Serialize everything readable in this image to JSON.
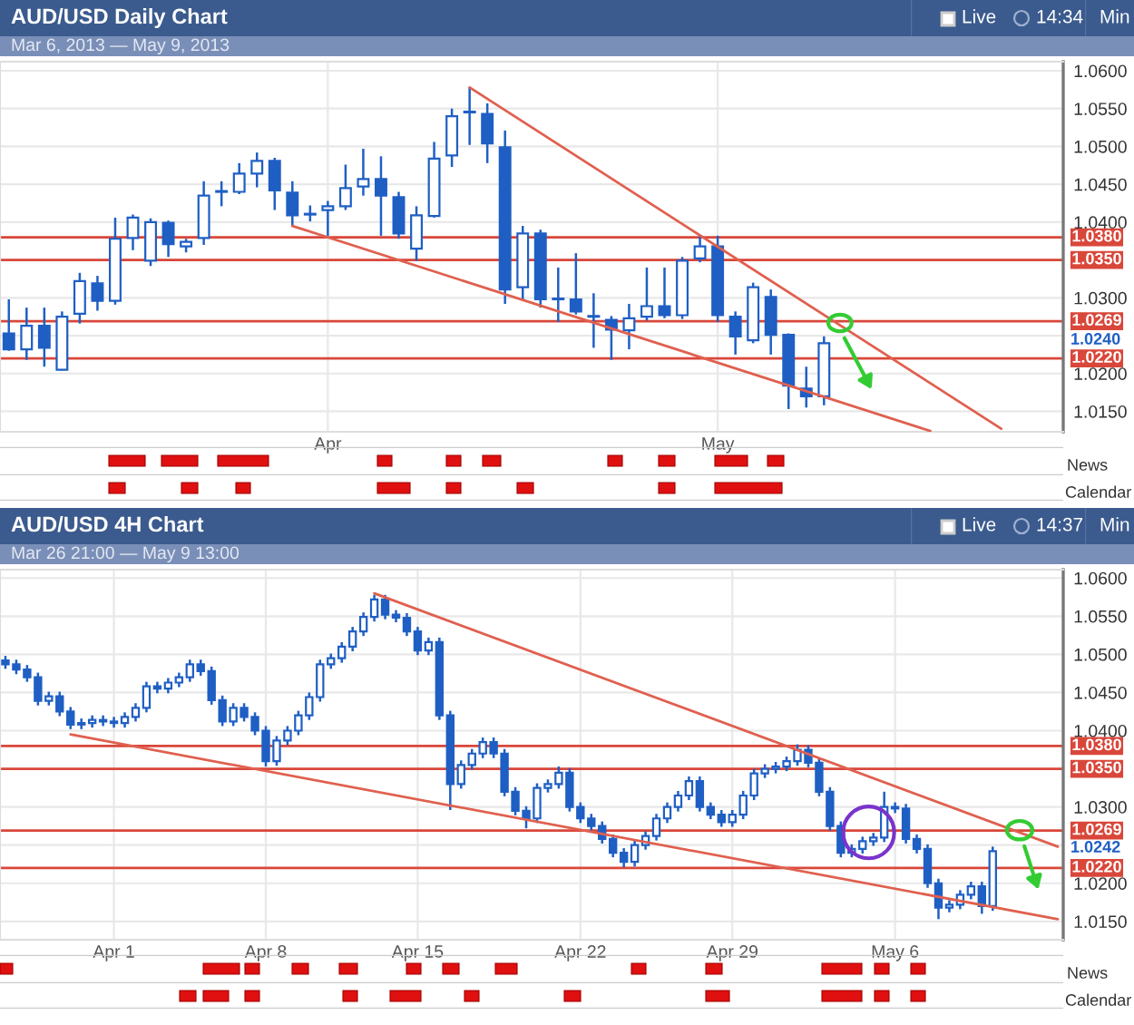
{
  "chart_data": [
    {
      "type": "candlestick",
      "title": "AUD/USD Daily Chart",
      "subtitle": "Mar 6, 2013 — May 9, 2013",
      "color": "#1f5fc4",
      "categories": [
        null,
        null,
        null,
        null,
        null,
        null,
        null,
        null,
        null,
        null,
        null,
        null,
        null,
        null,
        null,
        null,
        null,
        null,
        "Apr",
        null,
        null,
        null,
        null,
        null,
        null,
        null,
        null,
        null,
        null,
        null,
        null,
        null,
        null,
        null,
        null,
        null,
        null,
        null,
        null,
        null,
        "May",
        null,
        null,
        null,
        null,
        null,
        null,
        null,
        null,
        null,
        null,
        null,
        null,
        null,
        null,
        null,
        null,
        null,
        null,
        null
      ],
      "ohlc": [
        [
          1.0253,
          1.0298,
          1.023,
          1.0232
        ],
        [
          1.0232,
          1.0287,
          1.0218,
          1.0263
        ],
        [
          1.0263,
          1.0287,
          1.0209,
          1.0234
        ],
        [
          1.0205,
          1.0282,
          1.0204,
          1.0275
        ],
        [
          1.0279,
          1.0333,
          1.0266,
          1.0322
        ],
        [
          1.0319,
          1.0329,
          1.0283,
          1.0296
        ],
        [
          1.0296,
          1.0406,
          1.0291,
          1.0378
        ],
        [
          1.0379,
          1.041,
          1.0363,
          1.0406
        ],
        [
          1.0349,
          1.0405,
          1.0342,
          1.04
        ],
        [
          1.0399,
          1.0402,
          1.0354,
          1.0371
        ],
        [
          1.0368,
          1.0378,
          1.036,
          1.0374
        ],
        [
          1.0379,
          1.0454,
          1.037,
          1.0435
        ],
        [
          1.044,
          1.0454,
          1.0421,
          1.0441
        ],
        [
          1.044,
          1.0478,
          1.0437,
          1.0464
        ],
        [
          1.0464,
          1.0492,
          1.0446,
          1.0481
        ],
        [
          1.0481,
          1.0485,
          1.0416,
          1.0442
        ],
        [
          1.0439,
          1.0454,
          1.0395,
          1.0409
        ],
        [
          1.041,
          1.0422,
          1.0401,
          1.0411
        ],
        [
          1.0416,
          1.0428,
          1.0382,
          1.0421
        ],
        [
          1.0421,
          1.0476,
          1.0416,
          1.0445
        ],
        [
          1.0447,
          1.0497,
          1.0435,
          1.0457
        ],
        [
          1.0457,
          1.0487,
          1.0382,
          1.0435
        ],
        [
          1.0433,
          1.044,
          1.0378,
          1.0385
        ],
        [
          1.0365,
          1.0421,
          1.0349,
          1.0409
        ],
        [
          1.0408,
          1.0506,
          1.0406,
          1.0484
        ],
        [
          1.0488,
          1.055,
          1.0473,
          1.054
        ],
        [
          1.0545,
          1.0578,
          1.0502,
          1.0546
        ],
        [
          1.0543,
          1.0557,
          1.0478,
          1.0504
        ],
        [
          1.0499,
          1.0521,
          1.0292,
          1.0311
        ],
        [
          1.0314,
          1.0395,
          1.0297,
          1.0385
        ],
        [
          1.0385,
          1.039,
          1.0287,
          1.0298
        ],
        [
          1.0298,
          1.034,
          1.0268,
          1.0299
        ],
        [
          1.0298,
          1.0359,
          1.0278,
          1.0282
        ],
        [
          1.0275,
          1.0306,
          1.0234,
          1.0276
        ],
        [
          1.0271,
          1.0276,
          1.0218,
          1.0258
        ],
        [
          1.0257,
          1.0292,
          1.0232,
          1.0273
        ],
        [
          1.0275,
          1.034,
          1.027,
          1.0289
        ],
        [
          1.0289,
          1.034,
          1.0273,
          1.0277
        ],
        [
          1.0277,
          1.0354,
          1.0272,
          1.0349
        ],
        [
          1.0352,
          1.0382,
          1.0347,
          1.0368
        ],
        [
          1.0368,
          1.0382,
          1.0268,
          1.0277
        ],
        [
          1.0275,
          1.0282,
          1.0225,
          1.0249
        ],
        [
          1.0244,
          1.032,
          1.024,
          1.0314
        ],
        [
          1.0301,
          1.0311,
          1.0225,
          1.0251
        ],
        [
          1.0251,
          1.0253,
          1.0153,
          1.0184
        ],
        [
          1.018,
          1.0209,
          1.0155,
          1.017
        ],
        [
          1.017,
          1.0249,
          1.0158,
          1.024
        ],
        null,
        null,
        null,
        null,
        null,
        null,
        null,
        null,
        null,
        null,
        null,
        null,
        null
      ],
      "series": [
        {
          "type": "line",
          "color": "#e0604f",
          "values": [
            null,
            null,
            null,
            null,
            null,
            null,
            null,
            null,
            null,
            null,
            null,
            null,
            null,
            null,
            null,
            null,
            1.0395,
            null,
            null,
            null,
            null,
            null,
            null,
            null,
            null,
            null,
            null,
            null,
            null,
            null,
            null,
            null,
            null,
            null,
            null,
            null,
            null,
            null,
            null,
            null,
            null,
            null,
            null,
            null,
            null,
            null,
            null,
            null,
            null,
            null,
            null,
            null,
            1.0124,
            null,
            null,
            null,
            null,
            null,
            null,
            null
          ]
        },
        {
          "type": "line",
          "color": "#e0604f",
          "values": [
            null,
            null,
            null,
            null,
            null,
            null,
            null,
            null,
            null,
            null,
            null,
            null,
            null,
            null,
            null,
            null,
            null,
            null,
            null,
            null,
            null,
            null,
            null,
            null,
            null,
            null,
            1.0578,
            null,
            null,
            null,
            null,
            null,
            null,
            null,
            null,
            null,
            null,
            null,
            null,
            null,
            null,
            null,
            null,
            null,
            null,
            null,
            null,
            null,
            null,
            null,
            null,
            null,
            null,
            null,
            null,
            null,
            1.0127,
            null,
            null,
            null
          ]
        }
      ],
      "ref_lines": [
        {
          "axis": "y",
          "value": 1.038,
          "label": "1.0380",
          "color": "#d9473a"
        },
        {
          "axis": "y",
          "value": 1.035,
          "label": "1.0350",
          "color": "#d9473a"
        },
        {
          "axis": "y",
          "value": 1.0269,
          "label": "1.0269",
          "color": "#d9473a"
        },
        {
          "axis": "y",
          "value": 1.022,
          "label": "1.0220",
          "color": "#d9473a"
        }
      ],
      "ylim": [
        1.0123,
        1.0612
      ],
      "yticks": [
        {
          "value": 1.015,
          "label": "1.0150"
        },
        {
          "value": 1.02,
          "label": "1.0200"
        },
        {
          "value": 1.025,
          "label": null
        },
        {
          "value": 1.03,
          "label": "1.0300"
        },
        {
          "value": 1.035,
          "label": null
        },
        {
          "value": 1.04,
          "label": "1.0400"
        },
        {
          "value": 1.045,
          "label": "1.0450"
        },
        {
          "value": 1.05,
          "label": "1.0500"
        },
        {
          "value": 1.055,
          "label": "1.0550"
        },
        {
          "value": 1.06,
          "label": "1.0600"
        }
      ],
      "grid": true,
      "annotations": [
        "1.0240",
        "Live",
        "14:34",
        "Min",
        "News",
        "Calendar"
      ]
    },
    {
      "type": "candlestick",
      "title": "AUD/USD 4H Chart",
      "subtitle": "Mar 26 21:00 — May 9 13:00",
      "color": "#1f5fc4",
      "categories": [
        null,
        null,
        null,
        null,
        null,
        null,
        null,
        null,
        null,
        null,
        "Apr 1",
        null,
        null,
        null,
        null,
        null,
        null,
        null,
        null,
        null,
        null,
        null,
        null,
        null,
        "Apr 8",
        null,
        null,
        null,
        null,
        null,
        null,
        null,
        null,
        null,
        null,
        null,
        null,
        null,
        "Apr 15",
        null,
        null,
        null,
        null,
        null,
        null,
        null,
        null,
        null,
        null,
        null,
        null,
        null,
        null,
        "Apr 22",
        null,
        null,
        null,
        null,
        null,
        null,
        null,
        null,
        null,
        null,
        null,
        null,
        null,
        "Apr 29",
        null,
        null,
        null,
        null,
        null,
        null,
        null,
        null,
        null,
        null,
        null,
        null,
        null,
        null,
        "May 6",
        null,
        null,
        null,
        null,
        null,
        null,
        null,
        null,
        null,
        null,
        null,
        null,
        null,
        null,
        null
      ],
      "ohlc": [
        [
          1.0492,
          1.0498,
          1.0481,
          1.0487
        ],
        [
          1.0487,
          1.0493,
          1.0474,
          1.048
        ],
        [
          1.048,
          1.0486,
          1.0464,
          1.047
        ],
        [
          1.047,
          1.0476,
          1.0433,
          1.0439
        ],
        [
          1.0439,
          1.0451,
          1.0433,
          1.0445
        ],
        [
          1.0445,
          1.0451,
          1.0419,
          1.0425
        ],
        [
          1.0425,
          1.0431,
          1.0402,
          1.0408
        ],
        [
          1.0408,
          1.0416,
          1.0402,
          1.041
        ],
        [
          1.041,
          1.042,
          1.0404,
          1.0414
        ],
        [
          1.0414,
          1.042,
          1.0406,
          1.0412
        ],
        [
          1.0412,
          1.0418,
          1.0404,
          1.041
        ],
        [
          1.041,
          1.0424,
          1.0404,
          1.0418
        ],
        [
          1.0418,
          1.0436,
          1.0412,
          1.043
        ],
        [
          1.043,
          1.0464,
          1.0424,
          1.0458
        ],
        [
          1.0458,
          1.0464,
          1.0449,
          1.0455
        ],
        [
          1.0455,
          1.0469,
          1.0449,
          1.0463
        ],
        [
          1.0463,
          1.0476,
          1.0457,
          1.047
        ],
        [
          1.047,
          1.0493,
          1.0464,
          1.0487
        ],
        [
          1.0487,
          1.0493,
          1.0472,
          1.0478
        ],
        [
          1.0478,
          1.0484,
          1.0434,
          1.044
        ],
        [
          1.044,
          1.0446,
          1.0406,
          1.0412
        ],
        [
          1.0412,
          1.0436,
          1.0406,
          1.043
        ],
        [
          1.043,
          1.0436,
          1.0412,
          1.0418
        ],
        [
          1.0418,
          1.0424,
          1.0394,
          1.04
        ],
        [
          1.04,
          1.0406,
          1.0353,
          1.036
        ],
        [
          1.036,
          1.0393,
          1.0354,
          1.0387
        ],
        [
          1.0387,
          1.0406,
          1.0381,
          1.04
        ],
        [
          1.04,
          1.0426,
          1.0394,
          1.042
        ],
        [
          1.042,
          1.045,
          1.0414,
          1.0444
        ],
        [
          1.0444,
          1.0493,
          1.0438,
          1.0487
        ],
        [
          1.0487,
          1.0501,
          1.0481,
          1.0495
        ],
        [
          1.0495,
          1.0516,
          1.0489,
          1.051
        ],
        [
          1.051,
          1.0536,
          1.0504,
          1.053
        ],
        [
          1.053,
          1.0555,
          1.0524,
          1.0549
        ],
        [
          1.0549,
          1.0578,
          1.0543,
          1.0572
        ],
        [
          1.0572,
          1.0578,
          1.0546,
          1.0552
        ],
        [
          1.0552,
          1.0558,
          1.0542,
          1.0548
        ],
        [
          1.0548,
          1.0554,
          1.0524,
          1.053
        ],
        [
          1.053,
          1.0536,
          1.0499,
          1.0505
        ],
        [
          1.0505,
          1.0522,
          1.0499,
          1.0516
        ],
        [
          1.0516,
          1.0522,
          1.0414,
          1.042
        ],
        [
          1.042,
          1.0426,
          1.0296,
          1.033
        ],
        [
          1.033,
          1.0361,
          1.0324,
          1.0355
        ],
        [
          1.0355,
          1.0376,
          1.0349,
          1.037
        ],
        [
          1.037,
          1.0391,
          1.0364,
          1.0385
        ],
        [
          1.0385,
          1.0391,
          1.0364,
          1.037
        ],
        [
          1.037,
          1.0376,
          1.0314,
          1.032
        ],
        [
          1.032,
          1.0326,
          1.0289,
          1.0295
        ],
        [
          1.0295,
          1.0301,
          1.0272,
          1.0285
        ],
        [
          1.0285,
          1.0331,
          1.0279,
          1.0325
        ],
        [
          1.0325,
          1.0336,
          1.0319,
          1.033
        ],
        [
          1.033,
          1.0353,
          1.0324,
          1.0345
        ],
        [
          1.0345,
          1.0351,
          1.0294,
          1.03
        ],
        [
          1.03,
          1.0306,
          1.0279,
          1.0285
        ],
        [
          1.0285,
          1.0291,
          1.0269,
          1.0275
        ],
        [
          1.0275,
          1.0281,
          1.0252,
          1.0258
        ],
        [
          1.0258,
          1.0264,
          1.0234,
          1.024
        ],
        [
          1.024,
          1.0246,
          1.0221,
          1.0228
        ],
        [
          1.0228,
          1.0256,
          1.0222,
          1.025
        ],
        [
          1.025,
          1.0268,
          1.0244,
          1.0262
        ],
        [
          1.0262,
          1.0291,
          1.0256,
          1.0285
        ],
        [
          1.0285,
          1.0306,
          1.0279,
          1.03
        ],
        [
          1.03,
          1.0321,
          1.0294,
          1.0315
        ],
        [
          1.0315,
          1.034,
          1.0309,
          1.0334
        ],
        [
          1.0334,
          1.034,
          1.0294,
          1.03
        ],
        [
          1.03,
          1.0306,
          1.0284,
          1.029
        ],
        [
          1.029,
          1.0296,
          1.0274,
          1.028
        ],
        [
          1.028,
          1.0296,
          1.0274,
          1.029
        ],
        [
          1.029,
          1.0321,
          1.0284,
          1.0315
        ],
        [
          1.0315,
          1.035,
          1.0309,
          1.0344
        ],
        [
          1.0344,
          1.0356,
          1.0338,
          1.035
        ],
        [
          1.035,
          1.0359,
          1.0344,
          1.0353
        ],
        [
          1.0353,
          1.0366,
          1.0347,
          1.036
        ],
        [
          1.036,
          1.0382,
          1.0354,
          1.0375
        ],
        [
          1.0375,
          1.0381,
          1.0352,
          1.0358
        ],
        [
          1.0358,
          1.0364,
          1.0314,
          1.032
        ],
        [
          1.032,
          1.0326,
          1.0269,
          1.0275
        ],
        [
          1.0275,
          1.0281,
          1.0234,
          1.024
        ],
        [
          1.024,
          1.0251,
          1.0234,
          1.0245
        ],
        [
          1.0245,
          1.0261,
          1.0239,
          1.0255
        ],
        [
          1.0255,
          1.0266,
          1.0249,
          1.026
        ],
        [
          1.026,
          1.032,
          1.0254,
          1.03
        ],
        [
          1.03,
          1.0306,
          1.0292,
          1.0298
        ],
        [
          1.0298,
          1.0304,
          1.0252,
          1.0258
        ],
        [
          1.0258,
          1.0264,
          1.0239,
          1.0245
        ],
        [
          1.0245,
          1.0251,
          1.0194,
          1.02
        ],
        [
          1.02,
          1.0206,
          1.0153,
          1.0168
        ],
        [
          1.0168,
          1.0178,
          1.0162,
          1.0172
        ],
        [
          1.0172,
          1.0191,
          1.0166,
          1.0185
        ],
        [
          1.0185,
          1.0202,
          1.0179,
          1.0196
        ],
        [
          1.0196,
          1.0202,
          1.016,
          1.017
        ],
        [
          1.017,
          1.0248,
          1.0164,
          1.0242
        ],
        null,
        null,
        null,
        null,
        null,
        null
      ],
      "series": [
        {
          "type": "line",
          "color": "#e0604f",
          "values": [
            null,
            null,
            null,
            null,
            null,
            null,
            null,
            null,
            null,
            null,
            null,
            null,
            null,
            null,
            null,
            null,
            null,
            null,
            null,
            null,
            null,
            null,
            null,
            null,
            null,
            null,
            null,
            null,
            null,
            null,
            null,
            null,
            null,
            null,
            1.058,
            null,
            null,
            null,
            null,
            null,
            null,
            null,
            null,
            null,
            null,
            null,
            null,
            null,
            null,
            null,
            null,
            null,
            null,
            null,
            null,
            null,
            null,
            null,
            null,
            null,
            null,
            null,
            null,
            null,
            null,
            null,
            null,
            null,
            null,
            null,
            null,
            null,
            null,
            null,
            null,
            null,
            null,
            null,
            null,
            null,
            null,
            null,
            null,
            null,
            null,
            null,
            null,
            null,
            null,
            null,
            null,
            null,
            null,
            null,
            null,
            null,
            null,
            1.0248
          ]
        },
        {
          "type": "line",
          "color": "#e0604f",
          "values": [
            null,
            null,
            null,
            null,
            null,
            null,
            1.0395,
            null,
            null,
            null,
            null,
            null,
            null,
            null,
            null,
            null,
            null,
            null,
            null,
            null,
            null,
            null,
            null,
            null,
            null,
            null,
            null,
            null,
            null,
            null,
            null,
            null,
            null,
            null,
            null,
            null,
            null,
            null,
            null,
            null,
            null,
            null,
            null,
            null,
            null,
            null,
            null,
            null,
            null,
            null,
            null,
            null,
            null,
            null,
            null,
            null,
            null,
            null,
            null,
            null,
            null,
            null,
            null,
            null,
            null,
            null,
            null,
            null,
            null,
            null,
            null,
            null,
            null,
            null,
            null,
            null,
            null,
            null,
            null,
            null,
            null,
            null,
            null,
            null,
            null,
            null,
            null,
            null,
            null,
            null,
            null,
            null,
            null,
            null,
            null,
            null,
            null,
            1.0153
          ]
        }
      ],
      "ref_lines": [
        {
          "axis": "y",
          "value": 1.038,
          "label": "1.0380",
          "color": "#d9473a"
        },
        {
          "axis": "y",
          "value": 1.035,
          "label": "1.0350",
          "color": "#d9473a"
        },
        {
          "axis": "y",
          "value": 1.0269,
          "label": "1.0269",
          "color": "#d9473a"
        },
        {
          "axis": "y",
          "value": 1.022,
          "label": "1.0220",
          "color": "#d9473a"
        }
      ],
      "ylim": [
        1.0126,
        1.0611
      ],
      "yticks": [
        {
          "value": 1.015,
          "label": "1.0150"
        },
        {
          "value": 1.02,
          "label": "1.0200"
        },
        {
          "value": 1.025,
          "label": null
        },
        {
          "value": 1.03,
          "label": "1.0300"
        },
        {
          "value": 1.035,
          "label": null
        },
        {
          "value": 1.04,
          "label": "1.0400"
        },
        {
          "value": 1.045,
          "label": "1.0450"
        },
        {
          "value": 1.05,
          "label": "1.0500"
        },
        {
          "value": 1.055,
          "label": "1.0550"
        },
        {
          "value": 1.06,
          "label": "1.0600"
        }
      ],
      "grid": true,
      "annotations": [
        "1.0242",
        "Live",
        "14:37",
        "Min",
        "News",
        "Calendar"
      ]
    }
  ]
}
